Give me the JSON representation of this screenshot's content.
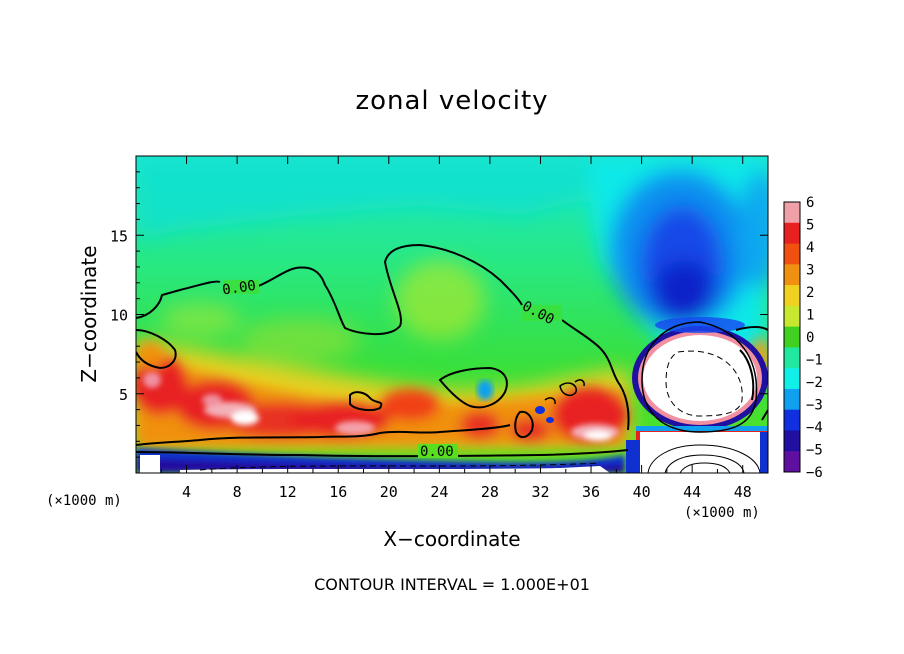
{
  "chart_data": {
    "type": "heatmap",
    "title": "zonal velocity",
    "xlabel": "X−coordinate",
    "ylabel": "Z−coordinate",
    "x_unit_left": "(×1000 m)",
    "x_unit_right": "(×1000 m)",
    "xlim": [
      0,
      50
    ],
    "ylim": [
      0,
      20
    ],
    "xticks": [
      4,
      8,
      12,
      16,
      20,
      24,
      28,
      32,
      36,
      40,
      44,
      48
    ],
    "yticks": [
      5,
      10,
      15
    ],
    "colorbar": {
      "min": -6,
      "max": 6,
      "labels": [
        "6",
        "5",
        "4",
        "3",
        "2",
        "1",
        "0",
        "−1",
        "−2",
        "−3",
        "−4",
        "−5",
        "−6"
      ],
      "colors": [
        "#f0a0a8",
        "#e82020",
        "#f05010",
        "#f09010",
        "#f0d020",
        "#c8e830",
        "#40d020",
        "#20e8a0",
        "#10f0e8",
        "#10a0f0",
        "#1030e0",
        "#2010a0",
        "#6010a0"
      ]
    },
    "contour_label": "0.00",
    "contour_interval": "CONTOUR INTERVAL = 1.000E+01",
    "features": [
      {
        "kind": "jet",
        "x": 8,
        "z": 3.2,
        "value": 5.5
      },
      {
        "kind": "jet",
        "x": 14,
        "z": 3.0,
        "value": 4.5
      },
      {
        "kind": "jet",
        "x": 36,
        "z": 2.5,
        "value": 5.5
      },
      {
        "kind": "jet",
        "x": 2,
        "z": 5.5,
        "value": 4.0
      },
      {
        "kind": "vortex-core",
        "x": 44,
        "z": 5.5,
        "value": -10
      },
      {
        "kind": "vortex-core",
        "x": 44,
        "z": 1.5,
        "value": 10
      },
      {
        "kind": "upper-minimum",
        "x": 43,
        "z": 12,
        "value": -4.5
      },
      {
        "kind": "surface-layer",
        "x": 20,
        "z": 0.8,
        "value": -5
      }
    ]
  }
}
